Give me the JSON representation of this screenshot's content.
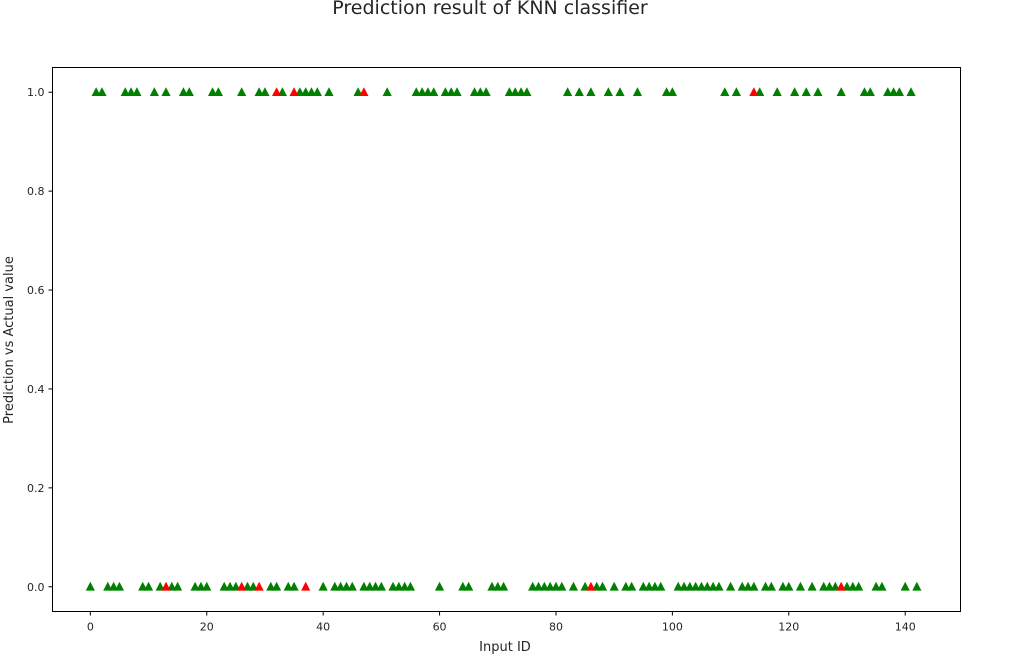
{
  "chart_data": {
    "type": "scatter",
    "title": "Prediction result of KNN classifier",
    "xlabel": "Input ID",
    "ylabel": "Prediction vs Actual value",
    "xlim": [
      -6.5,
      149.5
    ],
    "ylim": [
      -0.05,
      1.05
    ],
    "xticks": [
      0,
      20,
      40,
      60,
      80,
      100,
      120,
      140
    ],
    "xtick_labels": [
      "0",
      "20",
      "40",
      "60",
      "80",
      "100",
      "120",
      "140"
    ],
    "yticks": [
      0.0,
      0.2,
      0.4,
      0.6,
      0.8,
      1.0
    ],
    "ytick_labels": [
      "0.0",
      "0.2",
      "0.4",
      "0.6",
      "0.8",
      "1.0"
    ],
    "grid": false,
    "marker": "triangle-up",
    "series": [
      {
        "color": "#008000",
        "role": "actual",
        "points": [
          [
            1,
            1
          ],
          [
            2,
            1
          ],
          [
            6,
            1
          ],
          [
            7,
            1
          ],
          [
            8,
            1
          ],
          [
            11,
            1
          ],
          [
            13,
            1
          ],
          [
            16,
            1
          ],
          [
            17,
            1
          ],
          [
            21,
            1
          ],
          [
            22,
            1
          ],
          [
            26,
            1
          ],
          [
            29,
            1
          ],
          [
            30,
            1
          ],
          [
            33,
            1
          ],
          [
            36,
            1
          ],
          [
            37,
            1
          ],
          [
            38,
            1
          ],
          [
            39,
            1
          ],
          [
            41,
            1
          ],
          [
            46,
            1
          ],
          [
            51,
            1
          ],
          [
            56,
            1
          ],
          [
            57,
            1
          ],
          [
            58,
            1
          ],
          [
            59,
            1
          ],
          [
            61,
            1
          ],
          [
            62,
            1
          ],
          [
            63,
            1
          ],
          [
            66,
            1
          ],
          [
            67,
            1
          ],
          [
            68,
            1
          ],
          [
            72,
            1
          ],
          [
            73,
            1
          ],
          [
            74,
            1
          ],
          [
            75,
            1
          ],
          [
            82,
            1
          ],
          [
            84,
            1
          ],
          [
            86,
            1
          ],
          [
            89,
            1
          ],
          [
            91,
            1
          ],
          [
            94,
            1
          ],
          [
            99,
            1
          ],
          [
            100,
            1
          ],
          [
            109,
            1
          ],
          [
            111,
            1
          ],
          [
            115,
            1
          ],
          [
            118,
            1
          ],
          [
            121,
            1
          ],
          [
            123,
            1
          ],
          [
            125,
            1
          ],
          [
            129,
            1
          ],
          [
            133,
            1
          ],
          [
            134,
            1
          ],
          [
            137,
            1
          ],
          [
            138,
            1
          ],
          [
            139,
            1
          ],
          [
            141,
            1
          ],
          [
            0,
            0
          ],
          [
            3,
            0
          ],
          [
            4,
            0
          ],
          [
            5,
            0
          ],
          [
            9,
            0
          ],
          [
            10,
            0
          ],
          [
            12,
            0
          ],
          [
            14,
            0
          ],
          [
            15,
            0
          ],
          [
            18,
            0
          ],
          [
            19,
            0
          ],
          [
            20,
            0
          ],
          [
            23,
            0
          ],
          [
            24,
            0
          ],
          [
            25,
            0
          ],
          [
            27,
            0
          ],
          [
            28,
            0
          ],
          [
            31,
            0
          ],
          [
            32,
            0
          ],
          [
            34,
            0
          ],
          [
            35,
            0
          ],
          [
            40,
            0
          ],
          [
            42,
            0
          ],
          [
            43,
            0
          ],
          [
            44,
            0
          ],
          [
            45,
            0
          ],
          [
            47,
            0
          ],
          [
            48,
            0
          ],
          [
            49,
            0
          ],
          [
            50,
            0
          ],
          [
            52,
            0
          ],
          [
            53,
            0
          ],
          [
            54,
            0
          ],
          [
            55,
            0
          ],
          [
            60,
            0
          ],
          [
            64,
            0
          ],
          [
            65,
            0
          ],
          [
            69,
            0
          ],
          [
            70,
            0
          ],
          [
            71,
            0
          ],
          [
            76,
            0
          ],
          [
            77,
            0
          ],
          [
            78,
            0
          ],
          [
            79,
            0
          ],
          [
            80,
            0
          ],
          [
            81,
            0
          ],
          [
            83,
            0
          ],
          [
            85,
            0
          ],
          [
            87,
            0
          ],
          [
            88,
            0
          ],
          [
            90,
            0
          ],
          [
            92,
            0
          ],
          [
            93,
            0
          ],
          [
            95,
            0
          ],
          [
            96,
            0
          ],
          [
            97,
            0
          ],
          [
            98,
            0
          ],
          [
            101,
            0
          ],
          [
            102,
            0
          ],
          [
            103,
            0
          ],
          [
            104,
            0
          ],
          [
            105,
            0
          ],
          [
            106,
            0
          ],
          [
            107,
            0
          ],
          [
            108,
            0
          ],
          [
            110,
            0
          ],
          [
            112,
            0
          ],
          [
            113,
            0
          ],
          [
            114,
            0
          ],
          [
            116,
            0
          ],
          [
            117,
            0
          ],
          [
            119,
            0
          ],
          [
            120,
            0
          ],
          [
            122,
            0
          ],
          [
            124,
            0
          ],
          [
            126,
            0
          ],
          [
            127,
            0
          ],
          [
            128,
            0
          ],
          [
            130,
            0
          ],
          [
            131,
            0
          ],
          [
            132,
            0
          ],
          [
            135,
            0
          ],
          [
            136,
            0
          ],
          [
            140,
            0
          ],
          [
            142,
            0
          ]
        ]
      },
      {
        "color": "#ff0000",
        "role": "prediction",
        "points": [
          [
            32,
            1
          ],
          [
            35,
            1
          ],
          [
            47,
            1
          ],
          [
            114,
            1
          ],
          [
            13,
            0
          ],
          [
            26,
            0
          ],
          [
            29,
            0
          ],
          [
            37,
            0
          ],
          [
            86,
            0
          ],
          [
            129,
            0
          ]
        ]
      }
    ]
  }
}
